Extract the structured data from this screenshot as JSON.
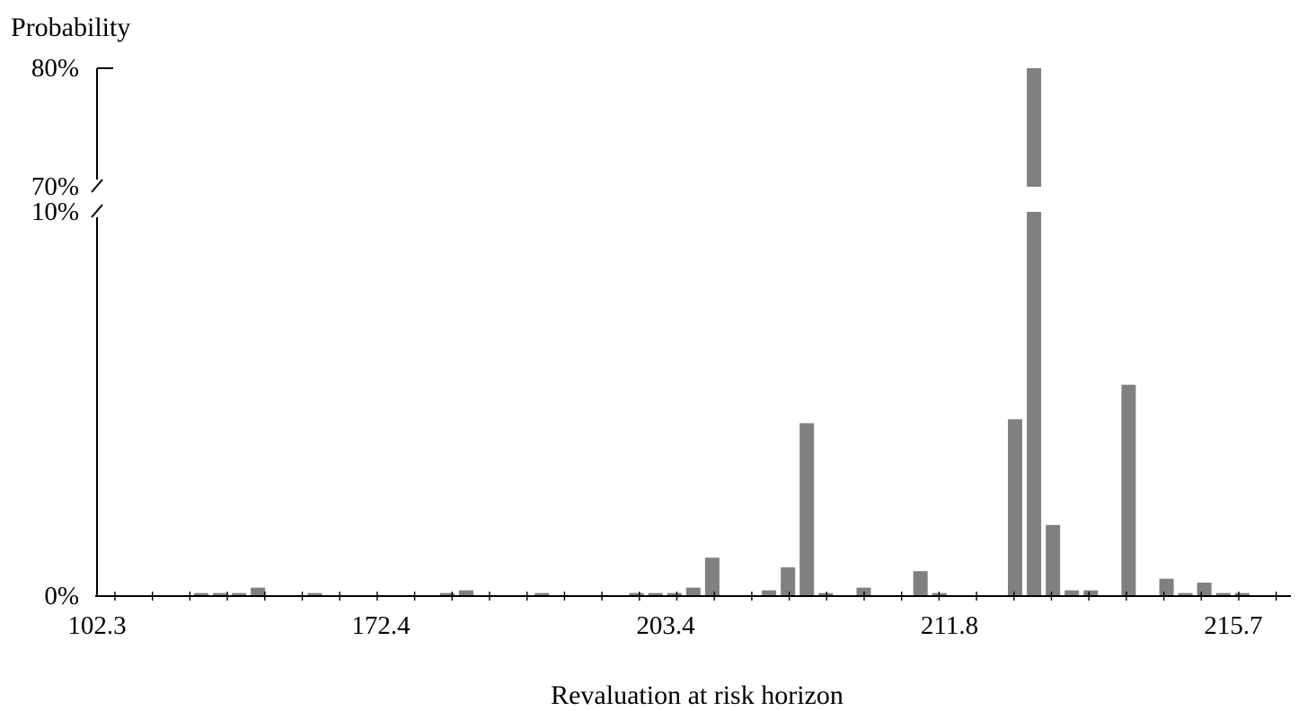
{
  "chart_data": {
    "type": "bar",
    "ylabel": "Probability",
    "xlabel": "Revaluation at risk horizon",
    "y_axis": {
      "broken": true,
      "lower_segment": [
        0,
        10
      ],
      "upper_segment": [
        70,
        80
      ],
      "ticks": [
        "0%",
        "10%",
        "70%",
        "80%"
      ]
    },
    "x_tick_labels": [
      "102.3",
      "172.4",
      "203.4",
      "211.8",
      "215.7"
    ],
    "bar_color": "#808080",
    "values": [
      0.08,
      0.08,
      0.08,
      0.22,
      0.0,
      0.0,
      0.08,
      0.0,
      0.0,
      0.0,
      0.0,
      0.0,
      0.0,
      0.08,
      0.15,
      0.0,
      0.0,
      0.0,
      0.08,
      0.0,
      0.0,
      0.0,
      0.0,
      0.08,
      0.08,
      0.08,
      0.22,
      1.0,
      0.0,
      0.0,
      0.15,
      0.75,
      4.5,
      0.08,
      0.0,
      0.22,
      0.0,
      0.0,
      0.65,
      0.08,
      0.0,
      0.0,
      0.0,
      4.6,
      80.0,
      1.85,
      0.15,
      0.15,
      0.0,
      5.5,
      0.0,
      0.45,
      0.08,
      0.35,
      0.08,
      0.08
    ]
  }
}
